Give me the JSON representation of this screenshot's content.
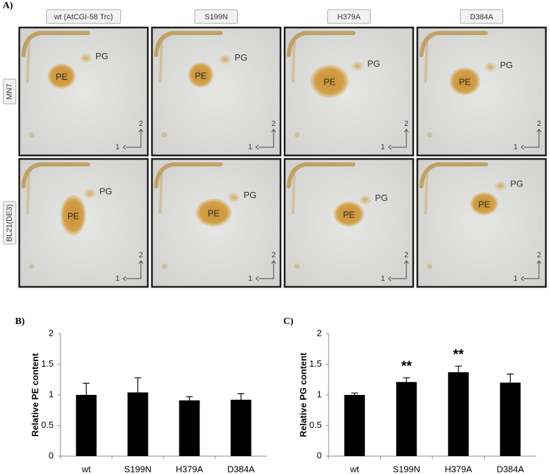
{
  "panel_a": {
    "label": "A)",
    "columns": [
      "wt (AtCGI-58 Trc)",
      "S199N",
      "H379A",
      "D384A"
    ],
    "rows": [
      "MN7",
      "BL21(DE3)"
    ],
    "spot_labels": [
      "PE",
      "PG"
    ],
    "direction_labels": [
      "1",
      "2"
    ]
  },
  "chart_data": [
    {
      "type": "bar",
      "panel_label": "B)",
      "ylabel": "Relative PE content",
      "categories": [
        "wt",
        "S199N",
        "H379A",
        "D384A"
      ],
      "values": [
        1.0,
        1.04,
        0.91,
        0.92
      ],
      "errors": [
        0.19,
        0.24,
        0.06,
        0.1
      ],
      "color": "#000000",
      "ylim": [
        0,
        2
      ],
      "yticks": [
        0,
        0.5,
        1,
        1.5,
        2
      ]
    },
    {
      "type": "bar",
      "panel_label": "C)",
      "ylabel": "Relative PG content",
      "categories": [
        "wt",
        "S199N",
        "H379A",
        "D384A"
      ],
      "values": [
        1.0,
        1.21,
        1.37,
        1.2
      ],
      "errors": [
        0.03,
        0.07,
        0.1,
        0.14
      ],
      "significance": [
        null,
        "**",
        "**",
        null
      ],
      "color": "#000000",
      "ylim": [
        0,
        2
      ],
      "yticks": [
        0,
        0.5,
        1,
        1.5,
        2
      ]
    }
  ]
}
